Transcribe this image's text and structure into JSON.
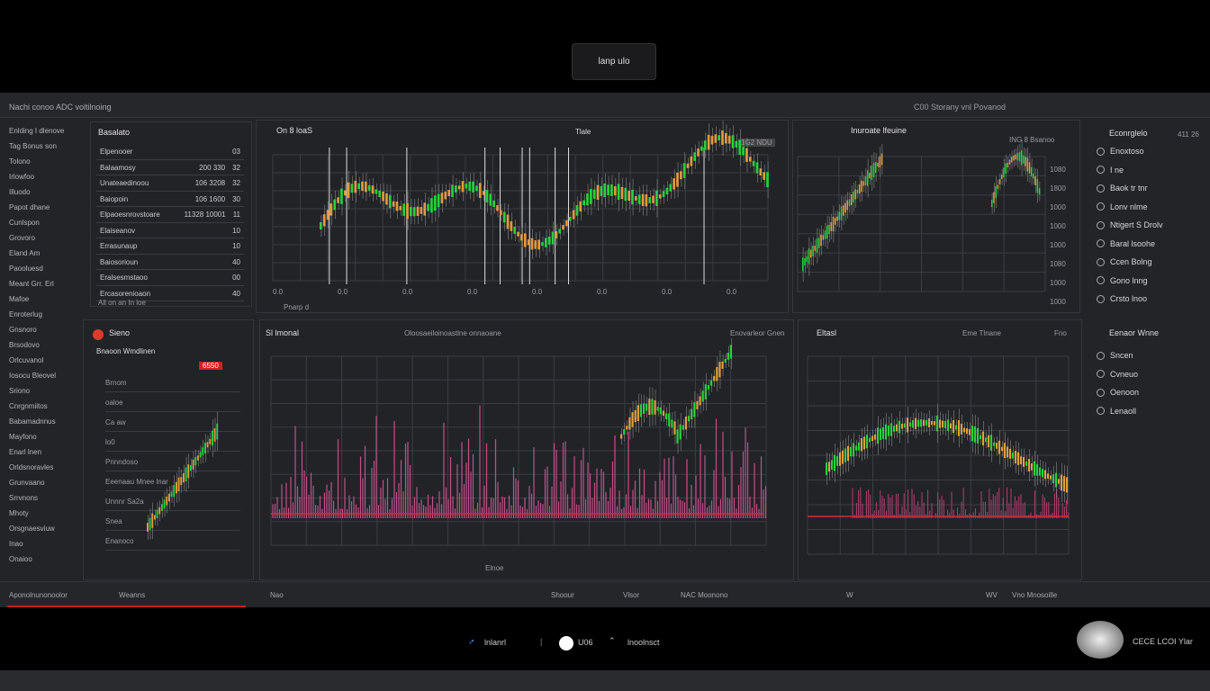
{
  "tooltip": "lanp ulo",
  "header": {
    "title": "Nachi conoo ADC voltilnoing",
    "right": "C00  Storany vnl Povanod"
  },
  "sidebar": [
    "Enlding I dlenove",
    "Tag Bonus son",
    "Tolono",
    "Irlowfoo",
    "Illuodo",
    "Papot dhane",
    "Cunlspon",
    "Grovoro",
    "Eland Am",
    "Paooluesd",
    "Meant Grr. Erl",
    "Mafoe",
    "Enroterlug",
    "Gnsnoro",
    "Brsodovo",
    "Orlcuvanol",
    "Iosocu Bleovel",
    "Sriono",
    "Cnrgnmiitos",
    "Babamadnnus",
    "Mayfono",
    "Enarl lnen",
    "Orldsnoravles",
    "Grunvaano",
    "Srrvnons",
    "Mhoty",
    "Orsgnaesviuw",
    "Inao",
    "Onaioo"
  ],
  "watchlist": {
    "title": "Basalato",
    "rows": [
      [
        "Elpenooer",
        "",
        "03"
      ],
      [
        "Balaamosy",
        "200 330",
        "32"
      ],
      [
        "Unateaedinoou",
        "106 3208",
        "32"
      ],
      [
        "Baiopoin",
        "106 1600",
        "30"
      ],
      [
        "Elpaoesnrovstoare",
        "11328 10001",
        "11"
      ],
      [
        "Elaiseanov",
        "",
        "10"
      ],
      [
        "Errasunaup",
        "",
        "10"
      ],
      [
        "Baiosorioun",
        "",
        "40"
      ],
      [
        "Eralsesmstaoo",
        "",
        "00"
      ],
      [
        "Ercasorenioaon",
        "",
        "40"
      ]
    ],
    "footer": "All on an In loe"
  },
  "chart1": {
    "title": "On 8 loaS",
    "center": "Tlale",
    "badge": "1G2 NDU",
    "bottom": "Pnarp d",
    "ticks": [
      "0.0",
      "0.0",
      "0.0",
      "0.0",
      "0.0",
      "0.0",
      "0.0",
      "0.0"
    ]
  },
  "chart2": {
    "title": "Inuroate lfeuine",
    "badge": "ING 8 Bsanoo",
    "axis": [
      "1080",
      "1800",
      "1000",
      "1000",
      "1000",
      "1080",
      "1000",
      "1000"
    ]
  },
  "right1": {
    "title": "Econrglelo",
    "value": "411 26",
    "items": [
      "Enoxtoso",
      "I ne",
      "Baok tr tnr",
      "Lonv nlme",
      "Ntigert S Drolv",
      "Baral lsoohe",
      "Ccen Bolng",
      "Gono lnng",
      "Crsto lnoo"
    ]
  },
  "orders": {
    "title": "Sieno",
    "sub": "Bnaoon Wmdlinen",
    "price": "6550",
    "rows": [
      "Brnom",
      "oaloe",
      "Ca aw",
      "lo0",
      "Pnnndoso",
      "Eeenaau Mnee lnar",
      "Unnnr Sa2a",
      "Snea",
      "Enanoco"
    ]
  },
  "chart3": {
    "title": "Sl lmonal",
    "center": "Oloosaeiloinoastlne onnaoane",
    "right": "Enovarleor Gnen",
    "bottom": "Elnoe"
  },
  "chart4": {
    "title": "Eltasl",
    "center": "Eme Tlnane",
    "right": "Fno"
  },
  "right2": {
    "title": "Eenaor Wnne",
    "items": [
      "Sncen",
      "Cvneuo",
      "Oenoon",
      "Lenaoll"
    ]
  },
  "footer": [
    "Aponolnunonoolor",
    "Weanns",
    "Nao",
    "Shoour",
    "Vlsor",
    "NAC  Moonono",
    "W",
    "WV",
    "Vno  Mnosoille"
  ],
  "bottom": {
    "a": "lnlanrl",
    "b": "U06",
    "c": "lnoolnsct",
    "brand": "CECE  LCOI  Ylar"
  }
}
